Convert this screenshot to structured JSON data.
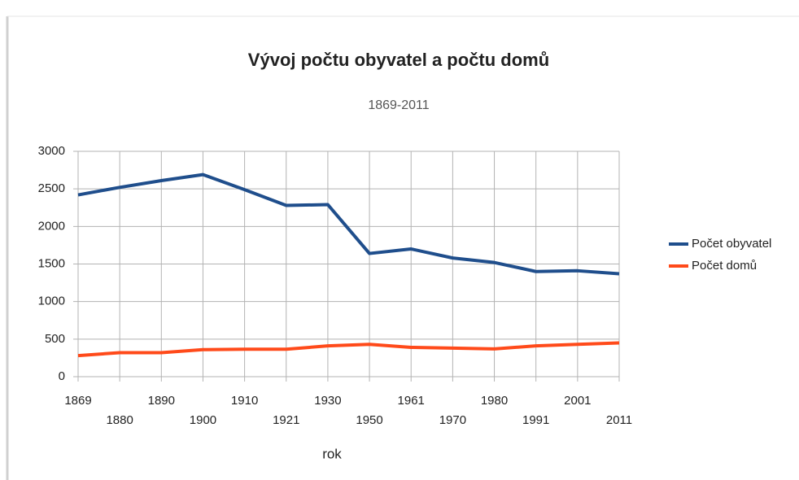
{
  "chart_data": {
    "type": "line",
    "title": "Vývoj počtu obyvatel a počtu domů",
    "subtitle": "1869-2011",
    "x_label": "rok",
    "categories": [
      "1869",
      "1880",
      "1890",
      "1900",
      "1910",
      "1921",
      "1930",
      "1950",
      "1961",
      "1970",
      "1980",
      "1991",
      "2001",
      "2011"
    ],
    "series": [
      {
        "name": "Počet obyvatel",
        "color": "#1f4e8c",
        "values": [
          2420,
          2520,
          2610,
          2690,
          2490,
          2280,
          2290,
          1640,
          1700,
          1580,
          1520,
          1400,
          1410,
          1370
        ]
      },
      {
        "name": "Počet domů",
        "color": "#ff4a1a",
        "values": [
          280,
          320,
          320,
          360,
          365,
          365,
          410,
          430,
          390,
          380,
          370,
          410,
          430,
          450
        ]
      }
    ],
    "ylim": [
      0,
      3000
    ],
    "yticks": [
      0,
      500,
      1000,
      1500,
      2000,
      2500,
      3000
    ],
    "grid": true,
    "legend": "right"
  }
}
